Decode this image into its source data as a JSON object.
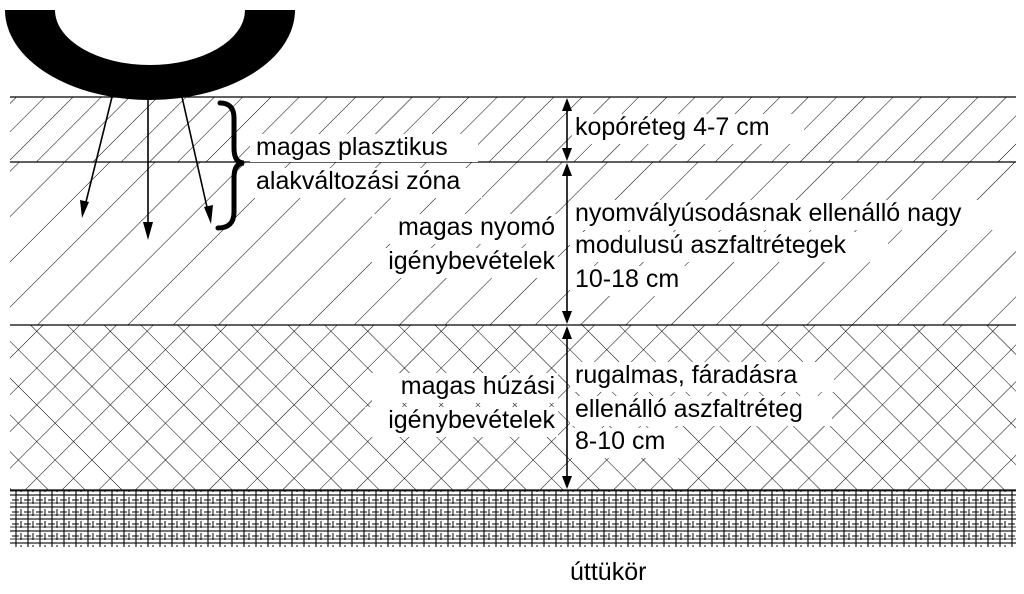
{
  "layers": [
    {
      "id": "wearing",
      "right_label": [
        "kopóréteg 4-7 cm"
      ]
    },
    {
      "id": "binder",
      "right_label": [
        "nyomvályúsodásnak ellenálló nagy",
        "modulusú aszfaltrétegek",
        "10-18 cm"
      ],
      "left_label": [
        "magas nyomó",
        "igénybevételek"
      ]
    },
    {
      "id": "base",
      "right_label": [
        "rugalmas, fáradásra",
        "ellenálló aszfaltréteg",
        "8-10 cm"
      ],
      "left_label": [
        "magas húzási",
        "igénybevételek"
      ]
    },
    {
      "id": "subgrade"
    }
  ],
  "brace_label": [
    "magas plasztikus",
    "alakváltozási zóna"
  ],
  "bottom_label": "úttükör",
  "colors": {
    "ink": "#000000",
    "background": "#ffffff"
  }
}
